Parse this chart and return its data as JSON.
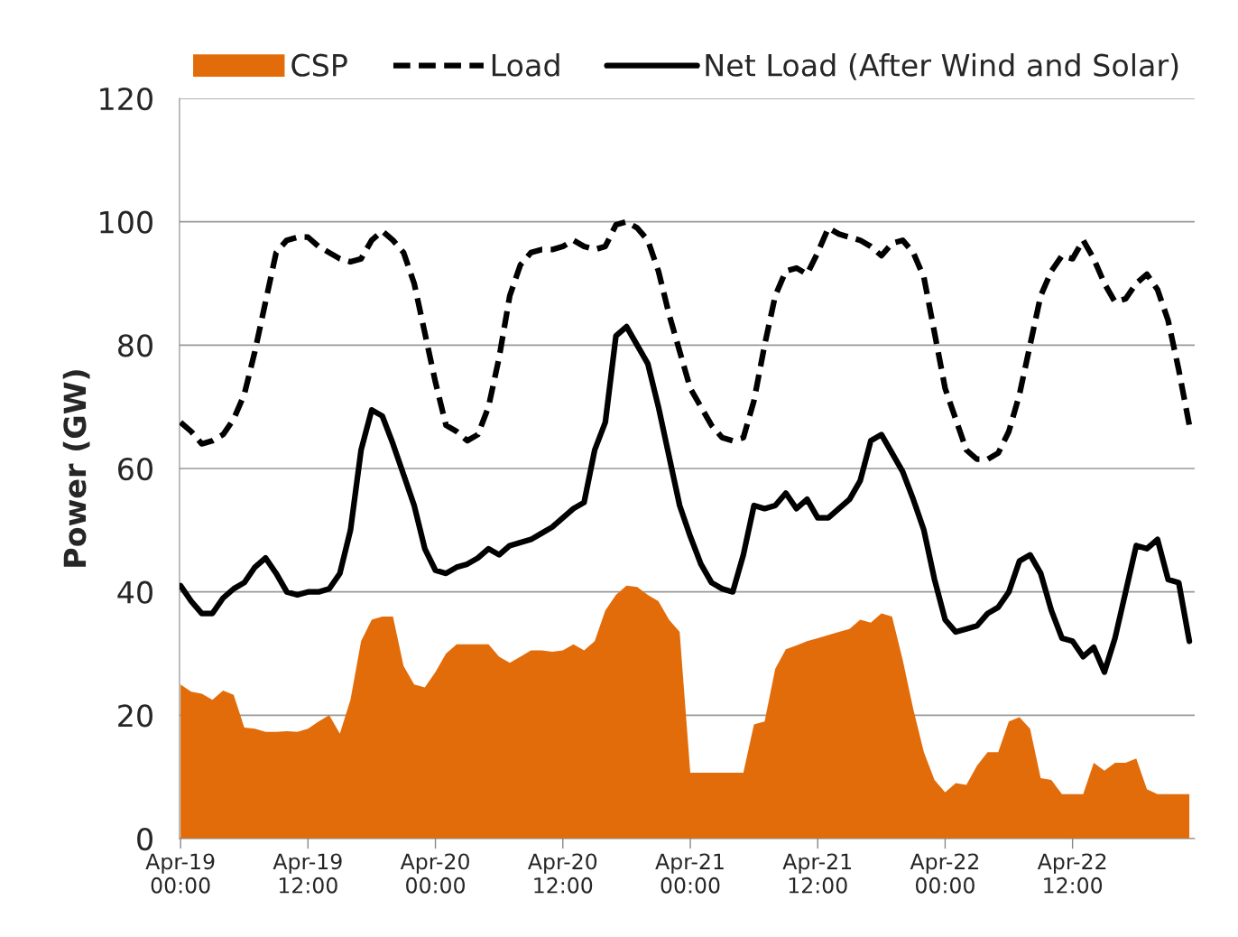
{
  "chart_data": {
    "type": "line",
    "ylabel": "Power (GW)",
    "categories": [
      "Apr-19\n00:00",
      null,
      null,
      null,
      null,
      null,
      null,
      null,
      null,
      null,
      null,
      null,
      "Apr-19\n12:00",
      null,
      null,
      null,
      null,
      null,
      null,
      null,
      null,
      null,
      null,
      null,
      "Apr-20\n00:00",
      null,
      null,
      null,
      null,
      null,
      null,
      null,
      null,
      null,
      null,
      null,
      "Apr-20\n12:00",
      null,
      null,
      null,
      null,
      null,
      null,
      null,
      null,
      null,
      null,
      null,
      "Apr-21\n00:00",
      null,
      null,
      null,
      null,
      null,
      null,
      null,
      null,
      null,
      null,
      null,
      "Apr-21\n12:00",
      null,
      null,
      null,
      null,
      null,
      null,
      null,
      null,
      null,
      null,
      null,
      "Apr-22\n00:00",
      null,
      null,
      null,
      null,
      null,
      null,
      null,
      null,
      null,
      null,
      null,
      "Apr-22\n12:00",
      null,
      null,
      null,
      null,
      null,
      null,
      null,
      null,
      null,
      null,
      null
    ],
    "series": [
      {
        "name": "CSP",
        "type": "area",
        "color": "#e36c0a",
        "values": [
          25,
          23.8,
          23.5,
          22.5,
          24,
          23.3,
          18,
          17.8,
          17.3,
          17.3,
          17.4,
          17.3,
          17.8,
          19,
          20,
          17,
          22.5,
          32,
          35.5,
          36,
          36,
          28,
          25,
          24.5,
          27,
          30,
          31.5,
          31.5,
          31.5,
          31.5,
          29.5,
          28.5,
          29.5,
          30.5,
          30.5,
          30.3,
          30.5,
          31.5,
          30.5,
          32,
          37,
          39.5,
          41,
          40.8,
          39.5,
          38.5,
          35.5,
          33.5,
          10.7,
          10.7,
          10.7,
          10.7,
          10.7,
          10.7,
          18.5,
          19,
          27.5,
          30.7,
          31.3,
          32,
          32.5,
          33,
          33.5,
          34,
          35.5,
          35,
          36.5,
          36,
          29,
          21,
          14,
          9.5,
          7.5,
          9,
          8.7,
          11.8,
          14,
          14,
          19,
          19.7,
          17.8,
          9.8,
          9.5,
          7.2,
          7.2,
          7.2,
          12.3,
          11,
          12.3,
          12.3,
          13,
          8,
          7.2,
          7.2,
          7.2,
          7.2
        ]
      },
      {
        "name": "Load",
        "line_style": "dashed",
        "color": "#000000",
        "values": [
          67.5,
          66,
          64,
          64.5,
          65.5,
          68,
          72,
          79,
          87,
          95,
          97,
          97.5,
          97.5,
          96,
          95,
          94,
          93.5,
          94,
          97,
          98.5,
          97,
          95,
          90,
          82,
          74,
          67,
          66,
          64.5,
          65.5,
          70,
          78,
          88,
          93,
          95,
          95.5,
          95.5,
          96,
          97,
          96,
          95.5,
          96,
          99.5,
          100,
          99,
          97,
          92,
          85,
          79,
          73,
          70,
          67,
          65,
          64.5,
          65,
          71,
          80,
          88,
          92,
          92.5,
          91.5,
          95,
          99,
          98,
          97.5,
          97,
          96,
          94.5,
          96.5,
          97,
          95,
          91,
          82,
          73,
          68,
          63,
          61.5,
          61.5,
          62.5,
          66,
          72,
          80,
          88,
          92,
          94.5,
          94,
          97,
          94,
          90,
          87,
          87.5,
          90,
          91.5,
          89,
          84,
          76,
          67
        ]
      },
      {
        "name": "Net Load (After Wind and Solar)",
        "line_style": "solid",
        "color": "#000000",
        "values": [
          41,
          38.5,
          36.5,
          36.5,
          39,
          40.5,
          41.5,
          44,
          45.5,
          43,
          40,
          39.5,
          40,
          40,
          40.5,
          43,
          50,
          63,
          69.5,
          68.5,
          64,
          59,
          54,
          47,
          43.5,
          43,
          44,
          44.5,
          45.5,
          47,
          46,
          47.5,
          48,
          48.5,
          49.5,
          50.5,
          52,
          53.5,
          54.5,
          63,
          67.5,
          81.5,
          83,
          80,
          77,
          70,
          62,
          54,
          49,
          44.5,
          41.5,
          40.5,
          40,
          46,
          54,
          53.5,
          54,
          56,
          53.5,
          55,
          52,
          52,
          53.5,
          55,
          58,
          64.5,
          65.5,
          62.5,
          59.5,
          55,
          50,
          42,
          35.5,
          33.5,
          34,
          34.5,
          36.5,
          37.5,
          40,
          45,
          46,
          43,
          37,
          32.5,
          32,
          29.5,
          31,
          27,
          32.5,
          40,
          47.5,
          47,
          48.5,
          42,
          41.5,
          32
        ]
      }
    ],
    "ylim": [
      0,
      120
    ],
    "yticks": [
      0,
      20,
      40,
      60,
      80,
      100,
      120
    ],
    "grid": "y",
    "legend": "top"
  }
}
